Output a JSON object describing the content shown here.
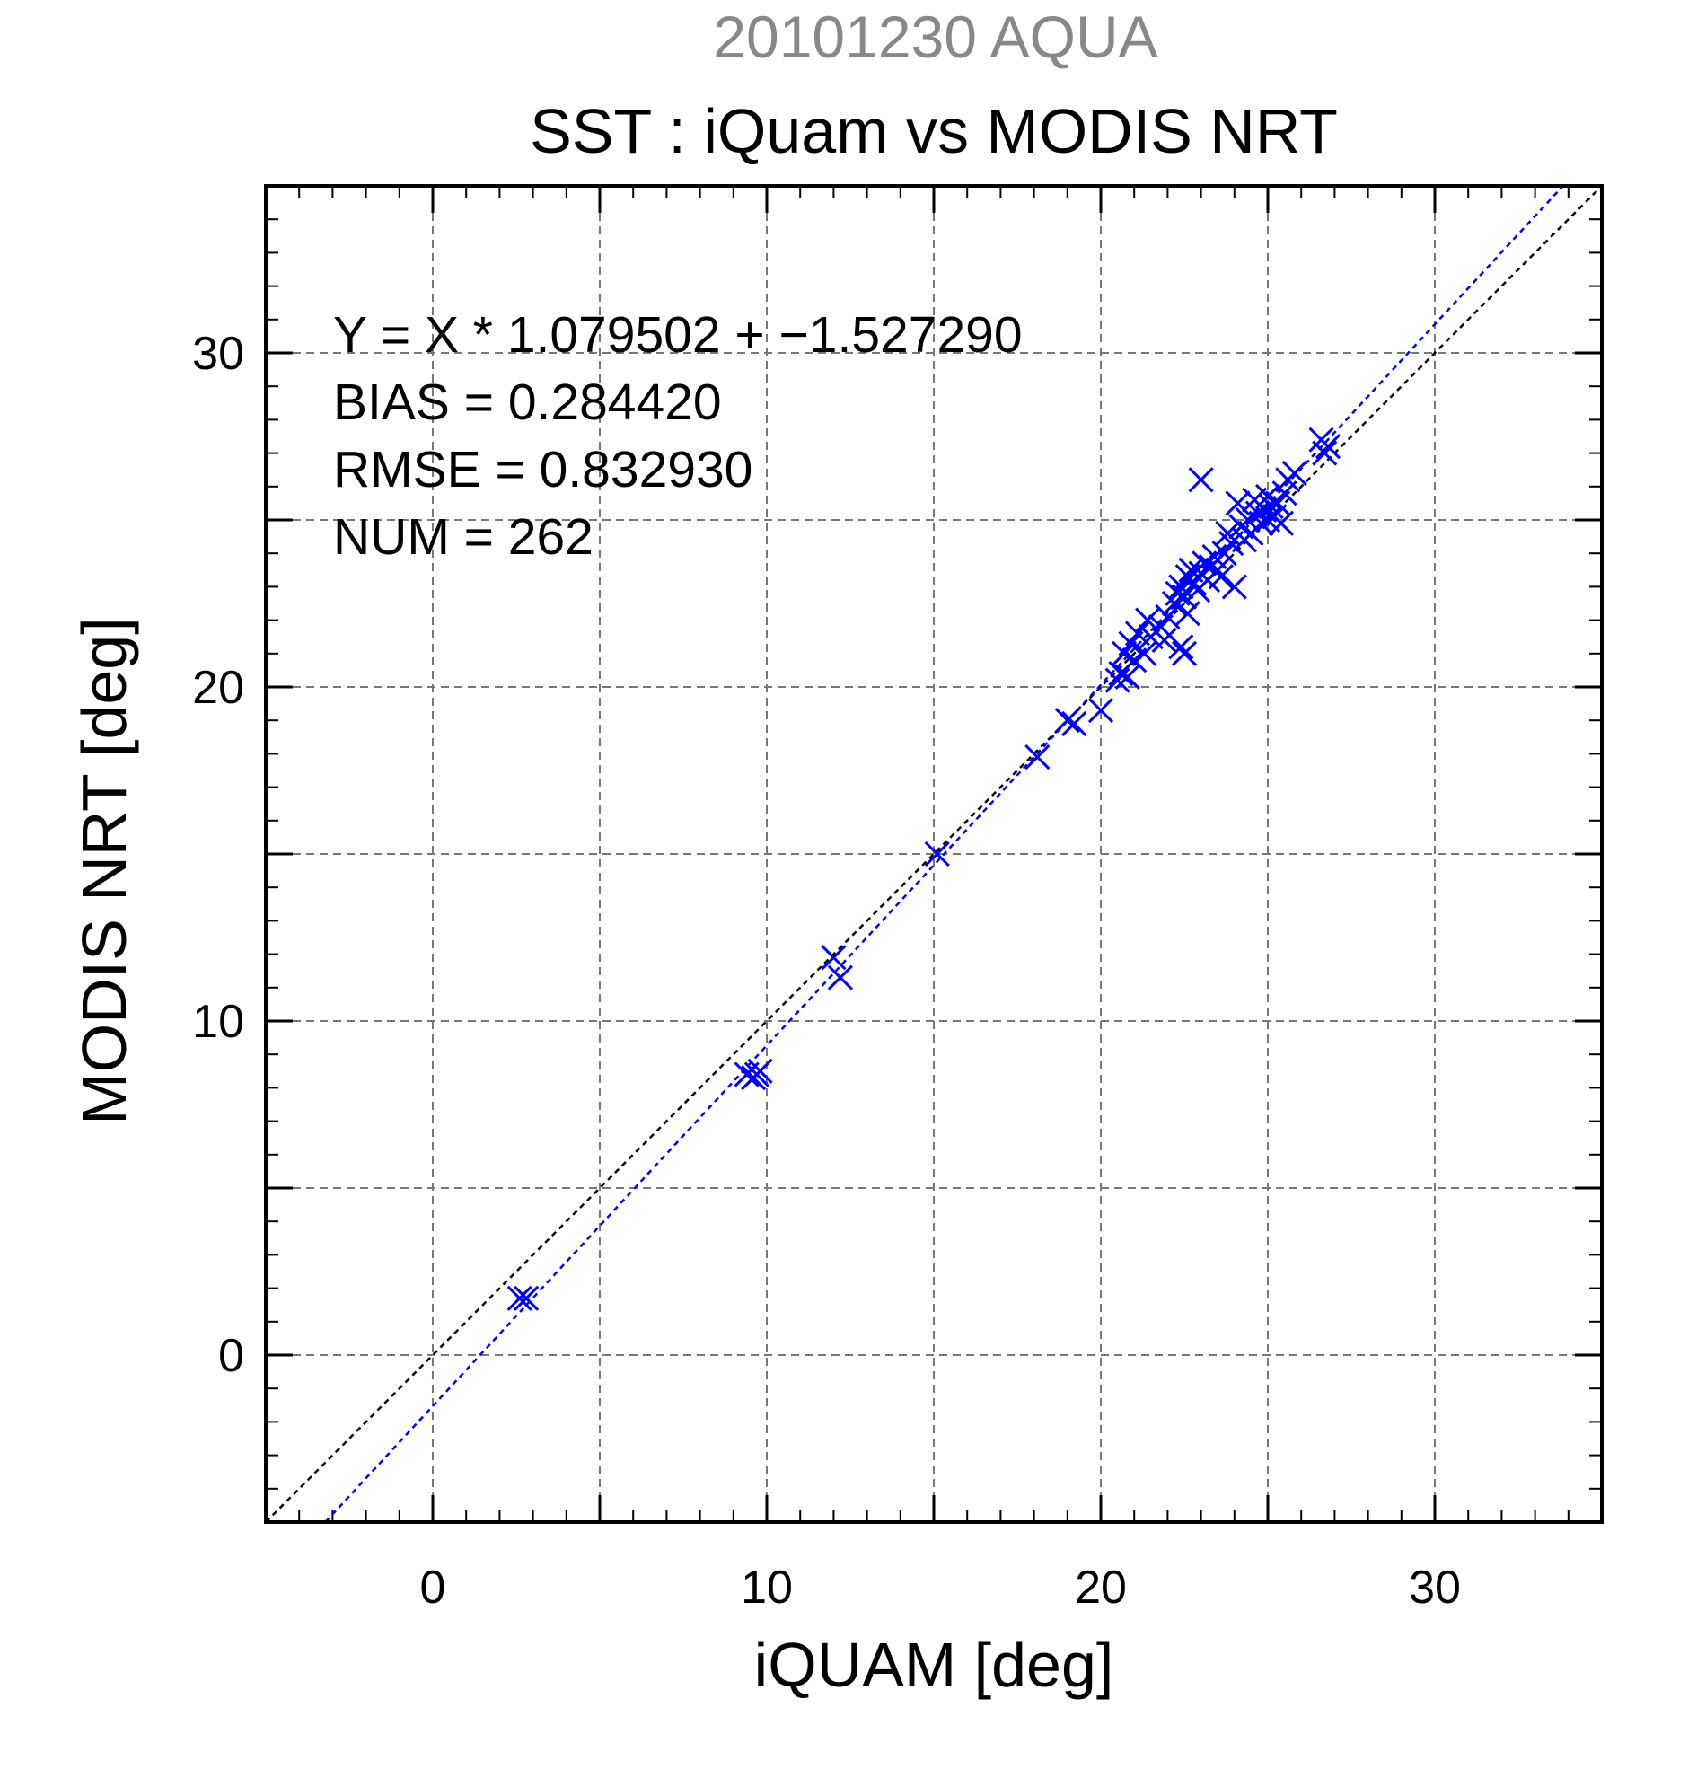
{
  "chart_data": {
    "type": "scatter",
    "date_title": "20101230 AQUA",
    "title": "SST : iQuam vs MODIS NRT",
    "xlabel": "iQUAM [deg]",
    "ylabel": "MODIS NRT [deg]",
    "xlim": [
      -5,
      35
    ],
    "ylim": [
      -5,
      35
    ],
    "xticks": [
      0,
      10,
      20,
      30
    ],
    "yticks": [
      0,
      10,
      20,
      30
    ],
    "xtick_labels": [
      "0",
      "10",
      "20",
      "30"
    ],
    "ytick_labels": [
      "0",
      "10",
      "20",
      "30"
    ],
    "minor_tick_step": 1,
    "grid": true,
    "stats": {
      "equation": "Y = X * 1.079502 + −1.527290",
      "bias": "BIAS = 0.284420",
      "rmse": "RMSE = 0.832930",
      "num": "NUM = 262"
    },
    "fit_line": {
      "slope": 1.079502,
      "intercept": -1.52729,
      "color": "#0000ff"
    },
    "identity_line": {
      "slope": 1,
      "intercept": 0,
      "color": "#000000"
    },
    "series": [
      {
        "marker": "x",
        "color": "#0000ff",
        "points": [
          [
            2.6,
            1.7
          ],
          [
            2.8,
            1.7
          ],
          [
            9.4,
            8.4
          ],
          [
            9.7,
            8.4
          ],
          [
            9.6,
            8.3
          ],
          [
            9.8,
            8.5
          ],
          [
            12.0,
            11.9
          ],
          [
            12.2,
            11.3
          ],
          [
            15.1,
            15.0
          ],
          [
            18.1,
            17.9
          ],
          [
            19.0,
            19.0
          ],
          [
            19.2,
            18.9
          ],
          [
            20.0,
            19.3
          ],
          [
            20.5,
            20.2
          ],
          [
            20.6,
            20.4
          ],
          [
            20.8,
            20.3
          ],
          [
            20.7,
            21.0
          ],
          [
            20.9,
            21.3
          ],
          [
            21.0,
            20.8
          ],
          [
            21.1,
            21.6
          ],
          [
            21.3,
            21.0
          ],
          [
            21.5,
            21.5
          ],
          [
            21.4,
            22.0
          ],
          [
            21.8,
            21.8
          ],
          [
            21.9,
            21.4
          ],
          [
            22.0,
            22.1
          ],
          [
            22.2,
            22.5
          ],
          [
            22.3,
            22.8
          ],
          [
            22.4,
            23.0
          ],
          [
            22.5,
            22.7
          ],
          [
            22.5,
            21.0
          ],
          [
            22.4,
            21.2
          ],
          [
            22.6,
            22.2
          ],
          [
            22.6,
            23.3
          ],
          [
            22.7,
            23.5
          ],
          [
            22.8,
            23.1
          ],
          [
            22.9,
            22.9
          ],
          [
            23.0,
            23.4
          ],
          [
            23.0,
            26.2
          ],
          [
            23.1,
            23.7
          ],
          [
            23.2,
            23.2
          ],
          [
            23.3,
            23.6
          ],
          [
            23.4,
            23.9
          ],
          [
            23.5,
            23.5
          ],
          [
            23.6,
            23.3
          ],
          [
            23.7,
            24.0
          ],
          [
            23.8,
            24.6
          ],
          [
            23.9,
            24.3
          ],
          [
            24.0,
            23.0
          ],
          [
            24.1,
            25.5
          ],
          [
            24.2,
            24.8
          ],
          [
            24.3,
            24.4
          ],
          [
            24.4,
            25.0
          ],
          [
            24.5,
            24.6
          ],
          [
            24.6,
            25.6
          ],
          [
            24.7,
            25.2
          ],
          [
            24.8,
            24.9
          ],
          [
            24.9,
            25.3
          ],
          [
            25.0,
            25.7
          ],
          [
            25.0,
            25.0
          ],
          [
            25.1,
            25.4
          ],
          [
            25.2,
            25.1
          ],
          [
            25.3,
            25.5
          ],
          [
            25.4,
            24.9
          ],
          [
            25.5,
            25.8
          ],
          [
            25.6,
            26.2
          ],
          [
            25.8,
            26.4
          ],
          [
            26.6,
            27.4
          ],
          [
            26.8,
            27.2
          ],
          [
            26.7,
            27.0
          ]
        ]
      }
    ]
  }
}
